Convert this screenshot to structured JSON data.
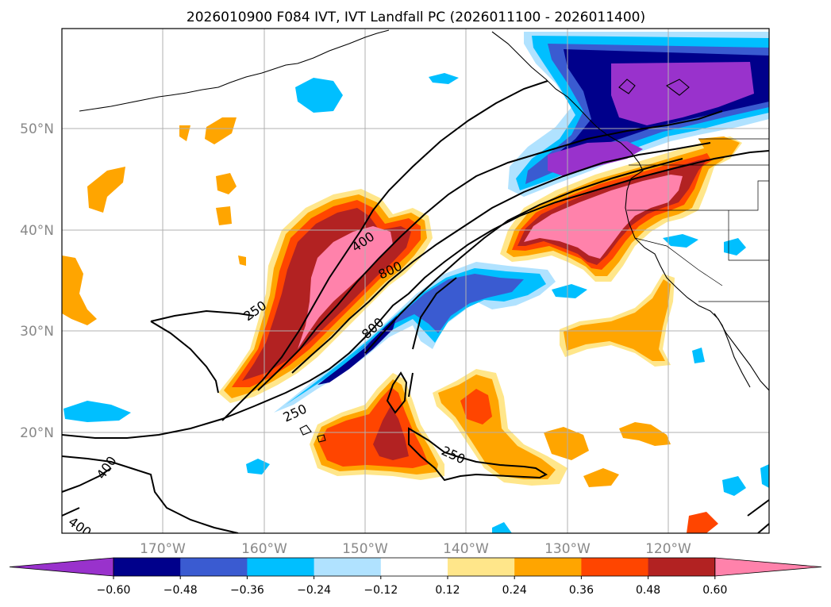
{
  "title": "2026010900 F084 IVT, IVT Landfall PC (2026011100 - 2026011400)",
  "lat_labels": [
    "50°N",
    "40°N",
    "30°N",
    "20°N"
  ],
  "lon_labels": [
    "170°W",
    "160°W",
    "150°W",
    "140°W",
    "130°W",
    "120°W"
  ],
  "colorbar": {
    "colors": [
      "#9932cc",
      "#00008b",
      "#3a5bd1",
      "#00bfff",
      "#b0e2ff",
      "#ffffff",
      "#ffe68a",
      "#ffa500",
      "#ff4500",
      "#b22222",
      "#ff82ab"
    ],
    "ticks": [
      "−0.60",
      "−0.48",
      "−0.36",
      "−0.24",
      "−0.12",
      "0.12",
      "0.24",
      "0.36",
      "0.48",
      "0.60"
    ]
  },
  "contour_labels": [
    "400",
    "800",
    "800",
    "250",
    "250",
    "250",
    "400",
    "400"
  ],
  "palette": {
    "pink": "#ff82ab",
    "darkred": "#b22222",
    "redorange": "#ff4500",
    "orange": "#ffa500",
    "yellow": "#ffe68a",
    "lightblue": "#b0e2ff",
    "skyblue": "#00bfff",
    "royalblue": "#3a5bd1",
    "navy": "#00008b",
    "purple": "#9932cc"
  }
}
